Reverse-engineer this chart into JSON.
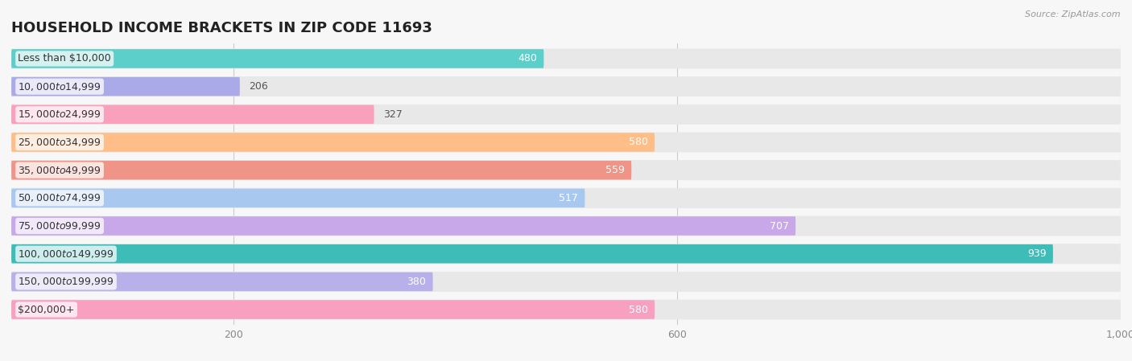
{
  "title": "Household Income Brackets in Zip Code 11693",
  "title_upper": "HOUSEHOLD INCOME BRACKETS IN ZIP CODE 11693",
  "source": "Source: ZipAtlas.com",
  "categories": [
    "Less than $10,000",
    "$10,000 to $14,999",
    "$15,000 to $24,999",
    "$25,000 to $34,999",
    "$35,000 to $49,999",
    "$50,000 to $74,999",
    "$75,000 to $99,999",
    "$100,000 to $149,999",
    "$150,000 to $199,999",
    "$200,000+"
  ],
  "values": [
    480,
    206,
    327,
    580,
    559,
    517,
    707,
    939,
    380,
    580
  ],
  "bar_colors": [
    "#5DCFCB",
    "#AAAAE8",
    "#F8A0BC",
    "#FFBE88",
    "#F09488",
    "#A8C8F0",
    "#C8A8E8",
    "#3DBCB8",
    "#B8B0E8",
    "#F8A0C0"
  ],
  "xlim_max": 1000,
  "xticks": [
    200,
    600,
    1000
  ],
  "bg_color": "#f7f7f7",
  "bar_bg_color": "#e8e8e8",
  "title_fontsize": 13,
  "label_fontsize": 9,
  "value_fontsize": 9
}
